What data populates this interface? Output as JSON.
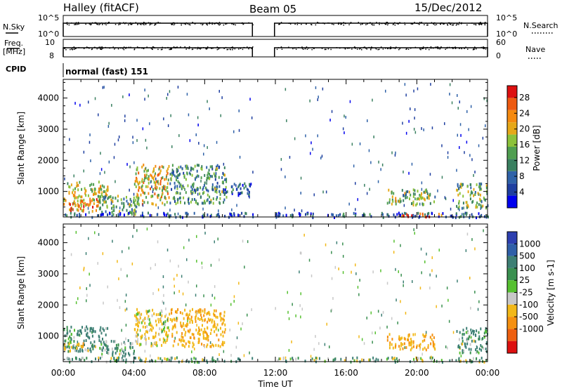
{
  "header": {
    "station": "Halley (fitACF)",
    "beam": "Beam 05",
    "date": "15/Dec/2012"
  },
  "top_panels": {
    "nsky_label": "N.Sky",
    "nsky_ticks": [
      "10^5",
      "10^0"
    ],
    "nsearch_label": "N.Search",
    "nsearch_ticks": [
      "10^5",
      "10^0"
    ],
    "freq_label": "Freq.",
    "freq_unit": "[MHz]",
    "freq_ticks": [
      "10",
      "8"
    ],
    "nave_label": "Nave",
    "nave_ticks": [
      "60",
      "0"
    ],
    "cpid_label": "CPID",
    "cpid_value": "normal (fast) 151"
  },
  "colors": {
    "power_scale": [
      "#0000ee",
      "#1f3fa0",
      "#2f62a8",
      "#3a8060",
      "#4f9e50",
      "#8cc23a",
      "#e6a818",
      "#f58a10",
      "#ee5a10",
      "#dd1010"
    ],
    "velocity_scale": [
      "#2d3fb0",
      "#2f5fa8",
      "#3d7f74",
      "#3a9050",
      "#56c030",
      "#c8c8c8",
      "#f2b818",
      "#f59010",
      "#ee6010",
      "#dd1010"
    ]
  },
  "chart_data": [
    {
      "type": "heatmap",
      "name": "power",
      "ylabel": "Slant Range [km]",
      "yticks": [
        "1000",
        "2000",
        "3000",
        "4000"
      ],
      "ylim": [
        180,
        4600
      ],
      "xticks": [
        "00:00",
        "04:00",
        "08:00",
        "12:00",
        "16:00",
        "20:00",
        "00:00"
      ],
      "xlim": [
        0,
        24
      ],
      "data_gap_hours": [
        10.7,
        11.95
      ],
      "colorbar": {
        "label": "Power [dB]",
        "tick_labels": [
          "4",
          "8",
          "12",
          "16",
          "20",
          "24",
          "28"
        ],
        "range": [
          0,
          31
        ]
      },
      "echo_regions": [
        {
          "t0": 0.0,
          "t1": 2.5,
          "r0": 550,
          "r1": 1350,
          "level": 18
        },
        {
          "t0": 0.3,
          "t1": 2.0,
          "r0": 400,
          "r1": 800,
          "level": 24
        },
        {
          "t0": 2.0,
          "t1": 4.2,
          "r0": 300,
          "r1": 900,
          "level": 13
        },
        {
          "t0": 4.0,
          "t1": 6.0,
          "r0": 600,
          "r1": 1900,
          "level": 20
        },
        {
          "t0": 6.0,
          "t1": 9.2,
          "r0": 650,
          "r1": 1900,
          "level": 12
        },
        {
          "t0": 9.0,
          "t1": 10.7,
          "r0": 900,
          "r1": 1300,
          "level": 6
        },
        {
          "t0": 18.3,
          "t1": 21.0,
          "r0": 600,
          "r1": 1100,
          "level": 16
        },
        {
          "t0": 22.2,
          "t1": 24.0,
          "r0": 500,
          "r1": 1300,
          "level": 14
        },
        {
          "t0": 0.0,
          "t1": 24.0,
          "r0": 200,
          "r1": 350,
          "level": 6
        },
        {
          "t0": 19.0,
          "t1": 21.5,
          "r0": 220,
          "r1": 330,
          "level": 26
        }
      ]
    },
    {
      "type": "heatmap",
      "name": "velocity",
      "ylabel": "Slant Range [km]",
      "yticks": [
        "1000",
        "2000",
        "3000",
        "4000"
      ],
      "ylim": [
        180,
        4600
      ],
      "xlabel": "Time UT",
      "xticks": [
        "00:00",
        "04:00",
        "08:00",
        "12:00",
        "16:00",
        "20:00",
        "00:00"
      ],
      "xlim": [
        0,
        24
      ],
      "data_gap_hours": [
        10.7,
        11.95
      ],
      "colorbar": {
        "label": "Velocity [m s-1]",
        "tick_labels": [
          "1000",
          "500",
          "100",
          "25",
          "-25",
          "-100",
          "-500",
          "-1000"
        ],
        "bin_edges": [
          -1500,
          -1000,
          -500,
          -100,
          -25,
          25,
          100,
          500,
          1000,
          1500
        ]
      },
      "echo_regions": [
        {
          "t0": 0.0,
          "t1": 2.5,
          "r0": 550,
          "r1": 1350,
          "level": 200
        },
        {
          "t0": 0.0,
          "t1": 1.5,
          "r0": 550,
          "r1": 800,
          "level": -300
        },
        {
          "t0": 2.0,
          "t1": 4.0,
          "r0": 400,
          "r1": 900,
          "level": 150
        },
        {
          "t0": 4.0,
          "t1": 6.0,
          "r0": 700,
          "r1": 1900,
          "level": -200
        },
        {
          "t0": 6.0,
          "t1": 9.2,
          "r0": 700,
          "r1": 1900,
          "level": -350
        },
        {
          "t0": 18.3,
          "t1": 21.0,
          "r0": 600,
          "r1": 1100,
          "level": -400
        },
        {
          "t0": 22.2,
          "t1": 24.0,
          "r0": 500,
          "r1": 1300,
          "level": 120
        },
        {
          "t0": 0.0,
          "t1": 24.0,
          "r0": 200,
          "r1": 350,
          "level": 60
        }
      ]
    }
  ]
}
